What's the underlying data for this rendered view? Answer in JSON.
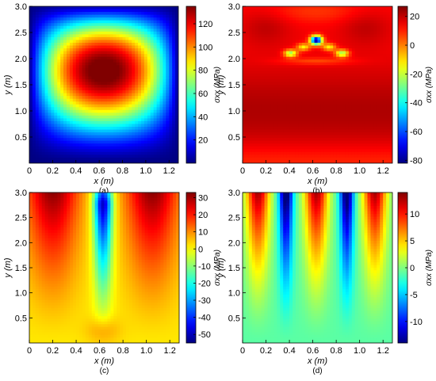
{
  "chart_data": [
    {
      "type": "heatmap",
      "panel_label": "(a)",
      "xlabel": "x (m)",
      "ylabel": "y (m)",
      "colorbar_label": "σxx (MPa)",
      "xlim": [
        0,
        1.28
      ],
      "ylim": [
        0,
        3.0
      ],
      "xticks": [
        "0",
        "0.2",
        "0.4",
        "0.6",
        "0.8",
        "1.0",
        "1.2"
      ],
      "yticks": [
        "0.5",
        "1.0",
        "1.5",
        "2.0",
        "2.5",
        "3.0"
      ],
      "clim": [
        0,
        135
      ],
      "colorbar_ticks": [
        "20",
        "40",
        "60",
        "80",
        "100",
        "120"
      ],
      "colormap": "jet",
      "features": [
        {
          "kind": "peak",
          "x": 0.63,
          "y": 2.05,
          "value": 133
        },
        {
          "kind": "minimum",
          "region": "left, right and bottom edges",
          "value": 0
        }
      ]
    },
    {
      "type": "heatmap",
      "panel_label": "(b)",
      "xlabel": "x (m)",
      "ylabel": "y (m)",
      "colorbar_label": "σxx (MPa)",
      "xlim": [
        0,
        1.28
      ],
      "ylim": [
        0,
        3.0
      ],
      "xticks": [
        "0",
        "0.2",
        "0.4",
        "0.6",
        "0.8",
        "1.0",
        "1.2"
      ],
      "yticks": [
        "0.5",
        "1.0",
        "1.5",
        "2.0",
        "2.5",
        "3.0"
      ],
      "clim": [
        -82,
        27
      ],
      "colorbar_ticks": [
        "-80",
        "-60",
        "-40",
        "-20",
        "0",
        "20"
      ],
      "colormap": "jet",
      "features": [
        {
          "kind": "minimum",
          "x": 0.63,
          "y": 2.35,
          "value": -80
        },
        {
          "kind": "local_low",
          "x": 0.41,
          "y": 2.1,
          "value": -25
        },
        {
          "kind": "local_low",
          "x": 0.85,
          "y": 2.1,
          "value": -25
        },
        {
          "kind": "local_low",
          "x": 0.52,
          "y": 2.2,
          "value": -10
        },
        {
          "kind": "local_low",
          "x": 0.74,
          "y": 2.2,
          "value": -10
        },
        {
          "kind": "high",
          "x": 0.2,
          "y": 2.6,
          "value": 25
        },
        {
          "kind": "high",
          "x": 1.05,
          "y": 2.6,
          "value": 25
        },
        {
          "kind": "high",
          "x": 0.63,
          "y": 1.0,
          "value": 22
        }
      ]
    },
    {
      "type": "heatmap",
      "panel_label": "(c)",
      "xlabel": "x (m)",
      "ylabel": "y (m)",
      "colorbar_label": "σxx (MPa)",
      "xlim": [
        0,
        1.28
      ],
      "ylim": [
        0,
        3.0
      ],
      "xticks": [
        "0",
        "0.2",
        "0.4",
        "0.6",
        "0.8",
        "1.0",
        "1.2"
      ],
      "yticks": [
        "0.5",
        "1.0",
        "1.5",
        "2.0",
        "2.5",
        "3.0"
      ],
      "clim": [
        -55,
        33
      ],
      "colorbar_ticks": [
        "-50",
        "-40",
        "-30",
        "-20",
        "-10",
        "0",
        "10",
        "20",
        "30"
      ],
      "colormap": "jet",
      "features": [
        {
          "kind": "minimum",
          "x": 0.63,
          "y": 2.4,
          "value": -55
        },
        {
          "kind": "high",
          "x": 0.2,
          "y": 2.4,
          "value": 30
        },
        {
          "kind": "high",
          "x": 1.05,
          "y": 2.4,
          "value": 30
        }
      ]
    },
    {
      "type": "heatmap",
      "panel_label": "(d)",
      "xlabel": "x (m)",
      "ylabel": "y (m)",
      "colorbar_label": "σxx (MPa)",
      "xlim": [
        0,
        1.28
      ],
      "ylim": [
        0,
        3.0
      ],
      "xticks": [
        "0",
        "0.2",
        "0.4",
        "0.6",
        "0.8",
        "1.0",
        "1.2"
      ],
      "yticks": [
        "0.5",
        "1.0",
        "1.5",
        "2.0",
        "2.5",
        "3.0"
      ],
      "clim": [
        -14,
        14
      ],
      "colorbar_ticks": [
        "-10",
        "-5",
        "0",
        "5",
        "10"
      ],
      "colormap": "jet",
      "features": [
        {
          "kind": "minimum",
          "x": 0.37,
          "y": 2.55,
          "value": -13
        },
        {
          "kind": "minimum",
          "x": 0.89,
          "y": 2.55,
          "value": -13
        },
        {
          "kind": "high",
          "x": 0.13,
          "y": 2.55,
          "value": 12
        },
        {
          "kind": "high",
          "x": 0.63,
          "y": 2.55,
          "value": 12
        },
        {
          "kind": "high",
          "x": 1.13,
          "y": 2.55,
          "value": 12
        }
      ]
    }
  ]
}
